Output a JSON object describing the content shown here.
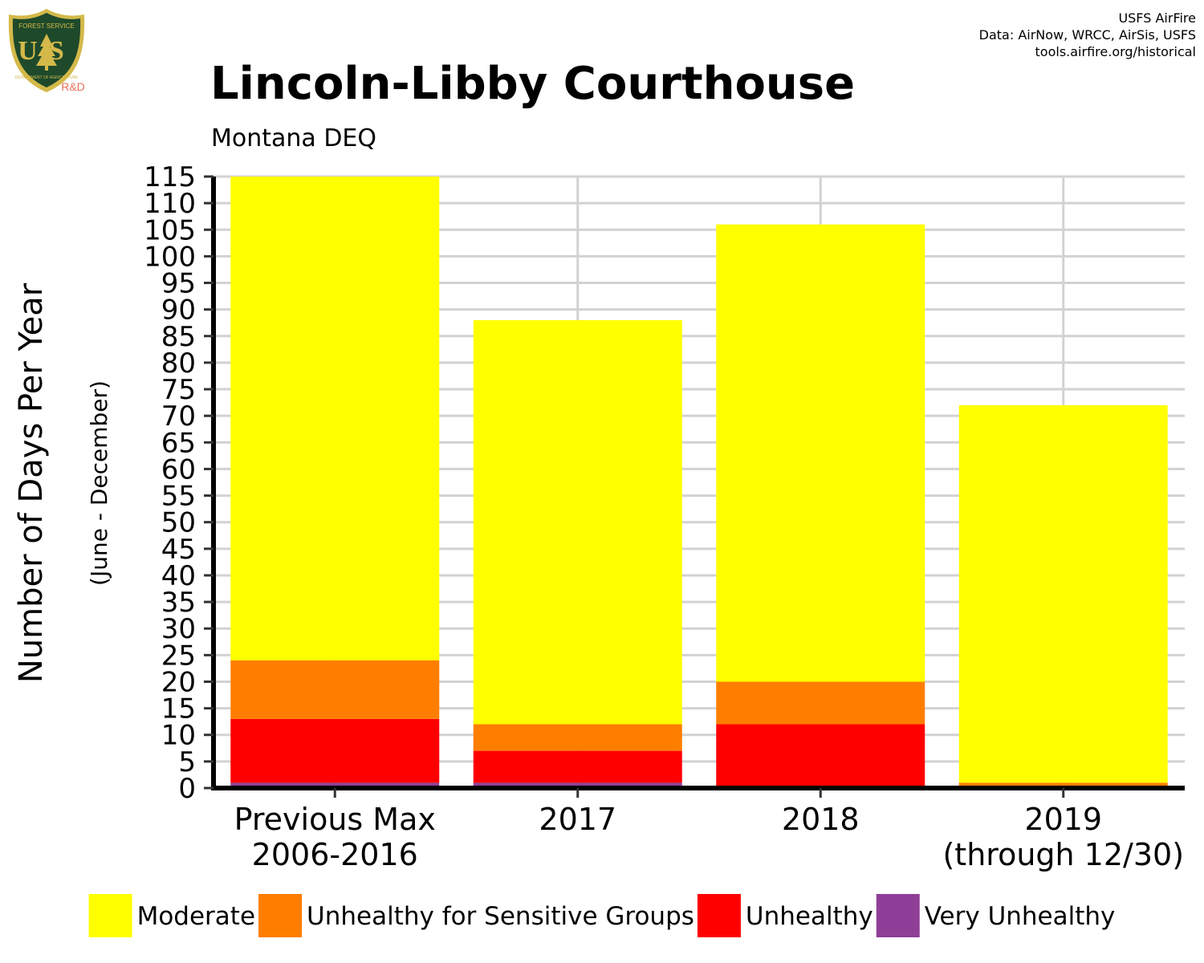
{
  "header": {
    "title": "Lincoln-Libby Courthouse",
    "subtitle": "Montana DEQ",
    "credits": [
      "USFS AirFire",
      "Data: AirNow, WRCC, AirSis, USFS",
      "tools.airfire.org/historical"
    ]
  },
  "logo": {
    "text_top": "FOREST SERVICE",
    "text_main": "US",
    "text_bottom": "DEPARTMENT OF AGRICULTURE",
    "badge": "R&D",
    "colors": {
      "shield": "#1e4a2b",
      "rim": "#d4b94a",
      "badge": "#e8705a"
    }
  },
  "chart_data": {
    "type": "bar",
    "stacked": true,
    "ylabel": "Number of Days Per Year",
    "ylabel_sub": "(June - December)",
    "ylim": [
      0,
      115
    ],
    "yticks": [
      "0",
      "5",
      "10",
      "15",
      "20",
      "25",
      "30",
      "35",
      "40",
      "45",
      "50",
      "55",
      "60",
      "65",
      "70",
      "75",
      "80",
      "85",
      "90",
      "95",
      "100",
      "105",
      "110",
      "115"
    ],
    "categories": [
      [
        "Previous Max",
        "2006-2016"
      ],
      [
        "2017"
      ],
      [
        "2018"
      ],
      [
        "2019",
        "(through 12/30)"
      ]
    ],
    "series": [
      {
        "name": "Very Unhealthy",
        "color": "#8f3f97",
        "values": [
          1,
          1,
          0,
          0
        ]
      },
      {
        "name": "Unhealthy",
        "color": "#ff0000",
        "values": [
          12,
          6,
          12,
          0
        ]
      },
      {
        "name": "Unhealthy for Sensitive Groups",
        "color": "#ff7e00",
        "values": [
          11,
          5,
          8,
          1
        ]
      },
      {
        "name": "Moderate",
        "color": "#ffff00",
        "values": [
          91,
          76,
          86,
          71
        ]
      }
    ],
    "legend_order": [
      "Moderate",
      "Unhealthy for Sensitive Groups",
      "Unhealthy",
      "Very Unhealthy"
    ],
    "grid": true,
    "legend_position": "bottom"
  }
}
